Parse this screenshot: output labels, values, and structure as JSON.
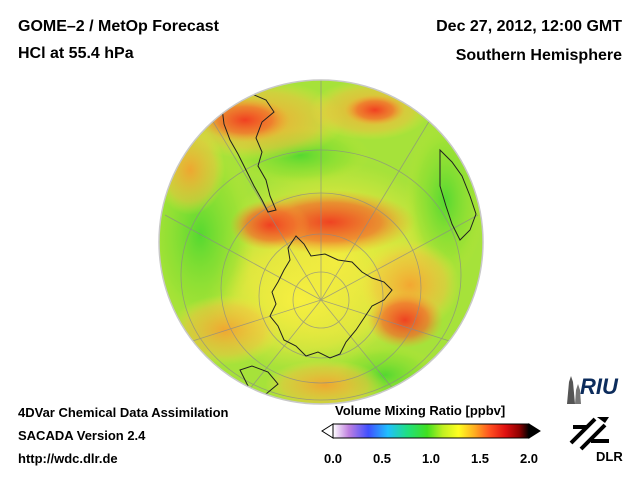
{
  "header": {
    "title_line1": "GOME–2 / MetOp Forecast",
    "title_line2": "HCl at 55.4 hPa",
    "date": "Dec 27, 2012, 12:00 GMT",
    "hemisphere": "Southern Hemisphere"
  },
  "footer": {
    "line1": "4DVar Chemical Data Assimilation",
    "line2": "SACADA Version 2.4",
    "url": "http://wdc.dlr.de"
  },
  "colorbar": {
    "title": "Volume Mixing Ratio [ppbv]",
    "ticks": [
      "0.0",
      "0.5",
      "1.0",
      "1.5",
      "2.0"
    ],
    "min": 0.0,
    "max": 2.0,
    "colors": [
      "#ffffff",
      "#c080e0",
      "#4050ff",
      "#20c0ff",
      "#20e080",
      "#40e020",
      "#c0f020",
      "#ffff20",
      "#ffb020",
      "#ff5020",
      "#e01010",
      "#900000",
      "#000000"
    ]
  },
  "logos": {
    "riu": "RIU",
    "dlr": "DLR"
  }
}
